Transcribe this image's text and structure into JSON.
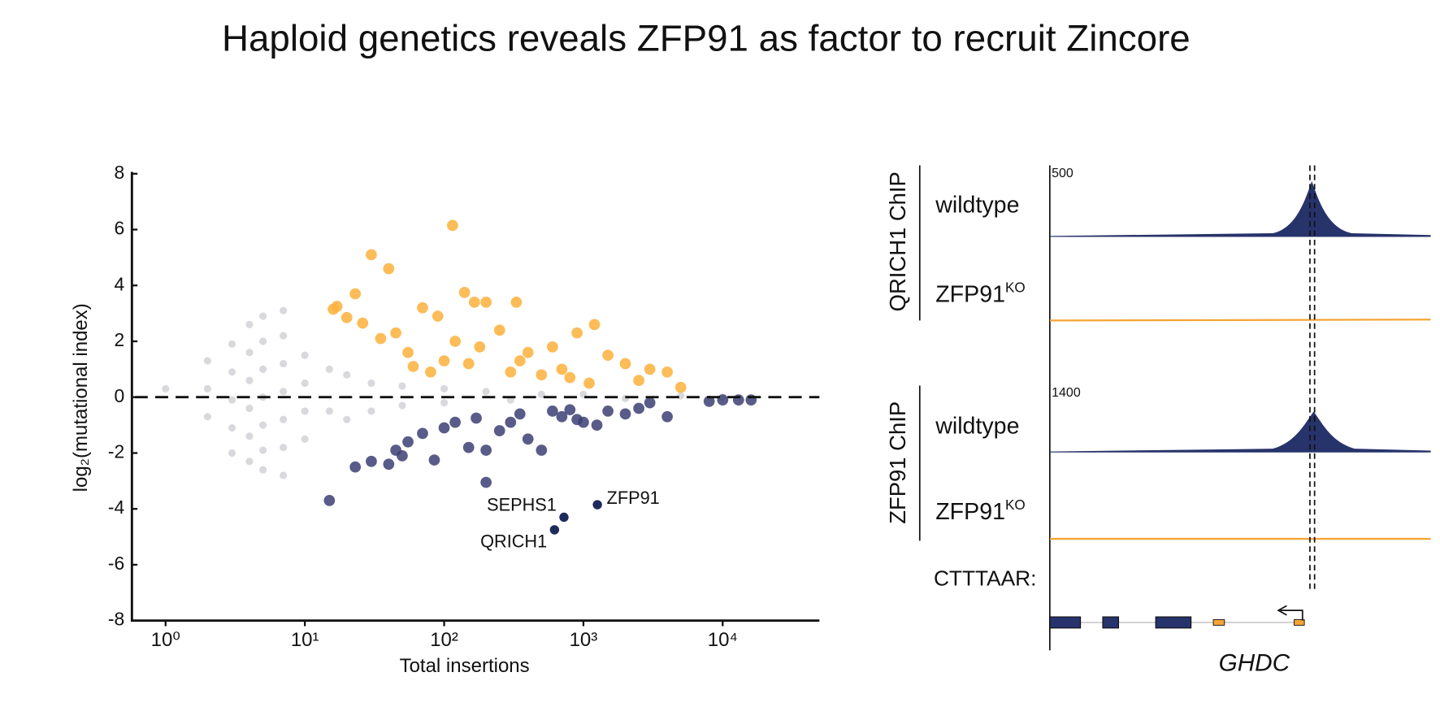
{
  "title": "Haploid genetics reveals ZFP91 as factor to recruit Zincore",
  "chart_data": {
    "type": "scatter",
    "x_label": "Total insertions",
    "y_label": "log₂(mutational index)",
    "log_x": true,
    "xlim": [
      0.6,
      48000
    ],
    "ylim": [
      -8,
      8
    ],
    "xticks": [
      {
        "value": 1,
        "label": "10⁰"
      },
      {
        "value": 10,
        "label": "10¹"
      },
      {
        "value": 100,
        "label": "10²"
      },
      {
        "value": 1000,
        "label": "10³"
      },
      {
        "value": 10000,
        "label": "10⁴"
      }
    ],
    "yticks": [
      -8,
      -6,
      -4,
      -2,
      0,
      2,
      4,
      6,
      8
    ],
    "hline": 0,
    "series": [
      {
        "color": "#d4d5d8",
        "x": [
          1,
          2,
          2,
          2,
          3,
          3,
          3,
          3,
          3,
          4,
          4,
          4,
          4,
          4,
          4,
          5,
          5,
          5,
          5,
          5,
          5,
          5,
          7,
          7,
          7,
          7,
          7,
          7,
          7,
          10,
          10,
          10,
          10,
          15,
          15,
          20,
          20,
          30,
          30,
          50,
          50,
          100,
          100,
          200,
          300,
          500,
          1000,
          2000,
          5000,
          10000
        ],
        "values": [
          0.3,
          1.3,
          0.3,
          -0.7,
          1.9,
          0.9,
          -0.1,
          -1.1,
          -2,
          2.6,
          1.6,
          0.6,
          -0.4,
          -1.4,
          -2.3,
          2.9,
          2,
          1,
          0,
          -1,
          -1.9,
          -2.6,
          3.1,
          2.2,
          1.2,
          0.2,
          -0.8,
          -1.8,
          -2.8,
          1.5,
          0.5,
          -0.5,
          -1.5,
          1,
          -0.5,
          0.8,
          -0.8,
          0.5,
          -0.5,
          0.4,
          -0.3,
          0.3,
          -0.2,
          0.2,
          -0.1,
          0.1,
          0.1,
          -0.05,
          0.05,
          0
        ]
      },
      {
        "color": "#fbb03b",
        "x": [
          115,
          30,
          40,
          16,
          17,
          23,
          20,
          26,
          35,
          45,
          55,
          70,
          90,
          140,
          165,
          200,
          330,
          250,
          400,
          600,
          900,
          1200,
          1500,
          2000,
          2500,
          3000,
          4000,
          5000,
          100,
          150,
          300,
          500,
          800,
          1100,
          60,
          80,
          120,
          180,
          350,
          700
        ],
        "values": [
          6.15,
          5.1,
          4.6,
          3.15,
          3.25,
          3.7,
          2.85,
          2.65,
          2.1,
          2.3,
          1.6,
          3.2,
          2.9,
          3.75,
          3.4,
          3.4,
          3.4,
          2.4,
          1.6,
          1.8,
          2.3,
          2.6,
          1.5,
          1.2,
          0.6,
          1.0,
          0.9,
          0.35,
          1.3,
          1.2,
          0.9,
          0.8,
          0.7,
          0.5,
          1.1,
          0.9,
          2.0,
          1.8,
          1.3,
          1.0
        ]
      },
      {
        "color": "#3c3f73",
        "x": [
          15,
          23,
          30,
          40,
          50,
          55,
          70,
          100,
          150,
          200,
          200,
          250,
          300,
          400,
          500,
          700,
          900,
          1000,
          1500,
          2000,
          3000,
          4000,
          8000,
          10000,
          13000,
          16000,
          120,
          170,
          350,
          600,
          800,
          85,
          45,
          1250,
          2500
        ],
        "values": [
          -3.7,
          -2.5,
          -2.3,
          -2.4,
          -2.1,
          -1.6,
          -1.3,
          -1.1,
          -1.8,
          -3.05,
          -1.9,
          -1.2,
          -0.9,
          -1.5,
          -1.9,
          -0.7,
          -0.8,
          -0.9,
          -0.5,
          -0.6,
          -0.2,
          -0.7,
          -0.15,
          -0.1,
          -0.1,
          -0.1,
          -0.9,
          -0.75,
          -0.6,
          -0.5,
          -0.45,
          -2.25,
          -1.9,
          -1.0,
          -0.4
        ]
      },
      {
        "color": "#1f2a5c",
        "x": [
          620,
          725,
          1260
        ],
        "values": [
          -4.75,
          -4.3,
          -3.85
        ],
        "point_labels": [
          "QRICH1",
          "SEPHS1",
          "ZFP91"
        ]
      }
    ]
  },
  "tracks": {
    "groups": [
      {
        "label": "QRICH1 ChIP",
        "scale": 500,
        "rows": [
          {
            "text": "wildtype"
          },
          {
            "text": "ZFP91",
            "sup": "KO"
          }
        ]
      },
      {
        "label": "ZFP91 ChIP",
        "scale": 1400,
        "rows": [
          {
            "text": "wildtype"
          },
          {
            "text": "ZFP91",
            "sup": "KO"
          }
        ]
      }
    ],
    "motif_label": "CTTTAAR:",
    "gene": "GHDC"
  }
}
